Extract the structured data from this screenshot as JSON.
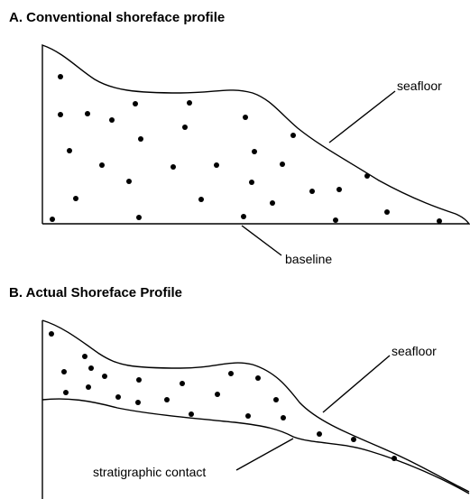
{
  "panel_a": {
    "title": "A. Conventional shoreface profile",
    "seafloor_label": "seafloor",
    "baseline_label": "baseline"
  },
  "panel_b": {
    "title": "B. Actual Shoreface Profile",
    "seafloor_label": "seafloor",
    "contact_label": "stratigraphic contact"
  }
}
